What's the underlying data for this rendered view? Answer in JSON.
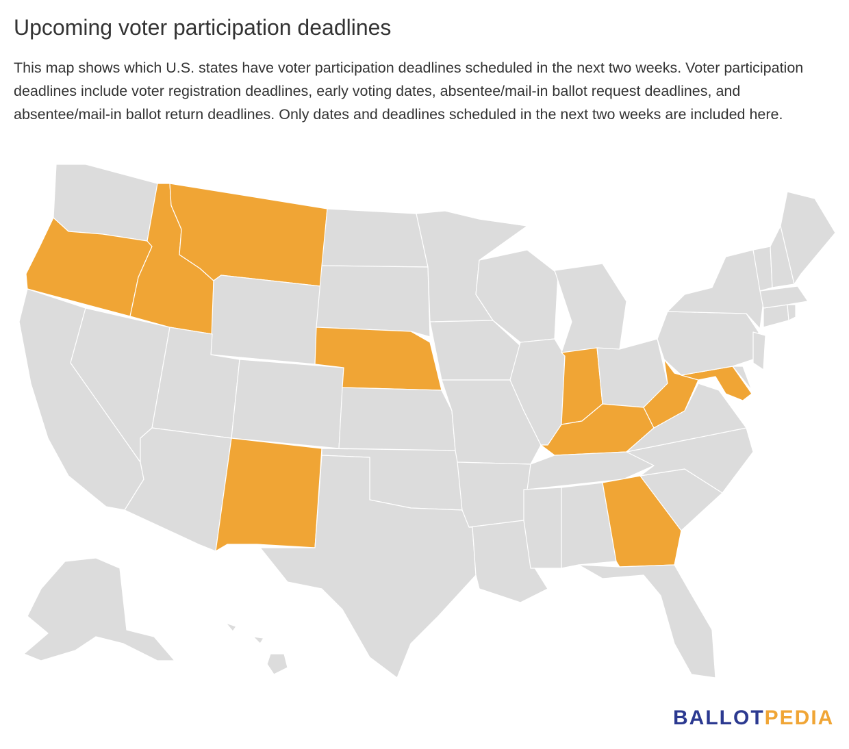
{
  "title": "Upcoming voter participation deadlines",
  "description": "This map shows which U.S. states have voter participation deadlines scheduled in the next two weeks. Voter participation deadlines include voter registration deadlines, early voting dates, absentee/mail-in ballot request deadlines, and absentee/mail-in ballot return deadlines. Only dates and deadlines scheduled in the next two weeks are included here.",
  "colors": {
    "highlight": "#f0a535",
    "default": "#dcdcdc",
    "border": "#ffffff",
    "logo_primary": "#2b3990",
    "logo_accent": "#f0a535"
  },
  "map": {
    "highlighted_states": [
      "OR",
      "ID",
      "MT",
      "NE",
      "NM",
      "IN",
      "KY",
      "WV",
      "MD",
      "GA"
    ]
  },
  "logo": {
    "part1": "BALLOT",
    "part2": "PEDIA"
  }
}
